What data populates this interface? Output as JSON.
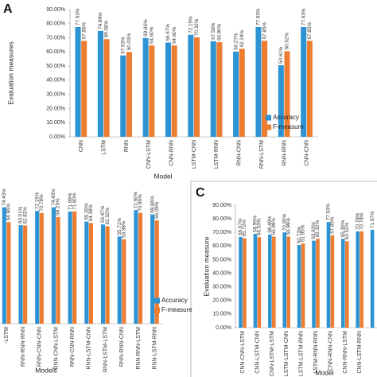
{
  "chart_data": [
    {
      "type": "bar",
      "title": "A",
      "y_label": "Evaluation measures",
      "x_label": "Model",
      "legend": "right",
      "categories": [
        "CNN",
        "LSTM",
        "RNN",
        "CNN-LSTM",
        "CNN-RNN",
        "LSTM-CNN",
        "LSTM-RNN",
        "RNN-CNN",
        "RNN-LSTM",
        "RNN-RNN",
        "CNN-CNN"
      ],
      "series": [
        {
          "name": "Accuracy",
          "color": "#2e93d3",
          "values": [
            77.63,
            74.89,
            57.53,
            69.86,
            66.67,
            72.15,
            67.58,
            60.27,
            77.63,
            50.61,
            77.63
          ],
          "value_labels": [
            "77.63%",
            "74.89%",
            "57.53%",
            "69.86%",
            "66.67%",
            "72.15%",
            "67.58%",
            "60.27%",
            "77.63%",
            "50.61%",
            "77.63%"
          ]
        },
        {
          "name": "F-measure",
          "color": "#ed7d31",
          "values": [
            67.85,
            69.08,
            60.03,
            64.6,
            64.6,
            70.32,
            66.9,
            62.24,
            67.85,
            60.52,
            67.85
          ],
          "value_labels": [
            "67.85%",
            "69.08%",
            "60.03%",
            "64.60%",
            "64.60%",
            "70.32%",
            "66.90%",
            "62.24%",
            "67.85%",
            "60.52%",
            "67.85%"
          ]
        }
      ],
      "ylim": [
        0,
        90
      ],
      "yticks": [
        {
          "value": 0,
          "label": "0.00%"
        },
        {
          "value": 10,
          "label": "10.00%"
        },
        {
          "value": 20,
          "label": "20.00%"
        },
        {
          "value": 30,
          "label": "30.00%"
        },
        {
          "value": 40,
          "label": "40.00%"
        },
        {
          "value": 50,
          "label": "50.00%"
        },
        {
          "value": 60,
          "label": "60.00%"
        },
        {
          "value": 70,
          "label": "70.00%"
        },
        {
          "value": 80,
          "label": "80.00%"
        },
        {
          "value": 90,
          "label": "90.00%"
        }
      ]
    },
    {
      "type": "bar",
      "x_label": "Models",
      "legend": "right",
      "categories": [
        "-LSTM",
        "RNN-RNN-RNN",
        "RNN-CNN-CNN",
        "RNN-CNN-LSTM",
        "RNN-CNN-RNN",
        "RNN-LSTM-CNN",
        "RNN-LSTM-LSTM",
        "RNN-RNN-CNN",
        "RNN-RNN-LSTM",
        "RNN-LSTM-RNN"
      ],
      "series": [
        {
          "name": "Accuracy",
          "color": "#2e93d3",
          "values": [
            74.43,
            63.01,
            72.15,
            74.43,
            71.69,
            65.3,
            63.47,
            55.71,
            72.6,
            69.86
          ],
          "value_labels": [
            "74.43%",
            "63.01%",
            "72.15%",
            "74.43%",
            "71.69%",
            "65.30%",
            "63.47%",
            "55.71%",
            "72.60%",
            "69.86%"
          ]
        },
        {
          "name": "F-measure",
          "color": "#ed7d31",
          "values": [
            64.96,
            62.82,
            70.78,
            68.23,
            71.8,
            64.38,
            62.32,
            53.98,
            70.86,
            66.09
          ],
          "value_labels": [
            "64.96%",
            "62.82%",
            "70.78%",
            "68.23%",
            "71.80%",
            "64.38%",
            "62.32%",
            "53.98%",
            "70.86%",
            "66.09%"
          ]
        }
      ],
      "ylim": [
        0,
        90
      ]
    },
    {
      "type": "bar",
      "title": "C",
      "y_label": "Evaluation measure",
      "x_label": "Model",
      "categories": [
        "CNN-CNN-LSTM",
        "CNN-LSTM-CNN",
        "CNN-LSTM-LSTM",
        "LSTM-LSTM-CNN",
        "LSTM-LSTM-RNN",
        "LSTM-RNN-RNN",
        "CNN-RNN-CNN",
        "CNN-RNN-LSTM",
        "CNN-LSTM-RNN",
        null
      ],
      "series": [
        {
          "color": "#2e93d3",
          "values": [
            66.67,
            68.95,
            68.49,
            70.06,
            60.73,
            63.93,
            77.63,
            65.3,
            70.78,
            71.97
          ],
          "value_labels": [
            "66.67%",
            "68.95%",
            "68.49%",
            "70.06%",
            "60.73%",
            "63.93%",
            "77.63%",
            "65.30%",
            "70.78%",
            "71.97%"
          ]
        },
        {
          "color": "#ed7d31",
          "values": [
            65.72,
            66.53,
            66.99,
            66.99,
            61.95,
            65.32,
            67.85,
            63.52,
            70.78,
            null
          ],
          "value_labels": [
            "65.72%",
            "66.53%",
            "66.99%",
            "66.99%",
            "61.95%",
            "65.32%",
            "67.85%",
            "63.52%",
            "70.78%",
            null
          ]
        }
      ],
      "ylim": [
        0,
        90
      ],
      "yticks": [
        {
          "value": 0,
          "label": "0.00%"
        },
        {
          "value": 10,
          "label": "10.00%"
        },
        {
          "value": 20,
          "label": "20.00%"
        },
        {
          "value": 30,
          "label": "30.00%"
        },
        {
          "value": 40,
          "label": "40.00%"
        },
        {
          "value": 50,
          "label": "50.00%"
        },
        {
          "value": 60,
          "label": "60.00%"
        },
        {
          "value": 70,
          "label": "70.00%"
        },
        {
          "value": 80,
          "label": "80.00%"
        },
        {
          "value": 90,
          "label": "90.00%"
        }
      ]
    }
  ]
}
